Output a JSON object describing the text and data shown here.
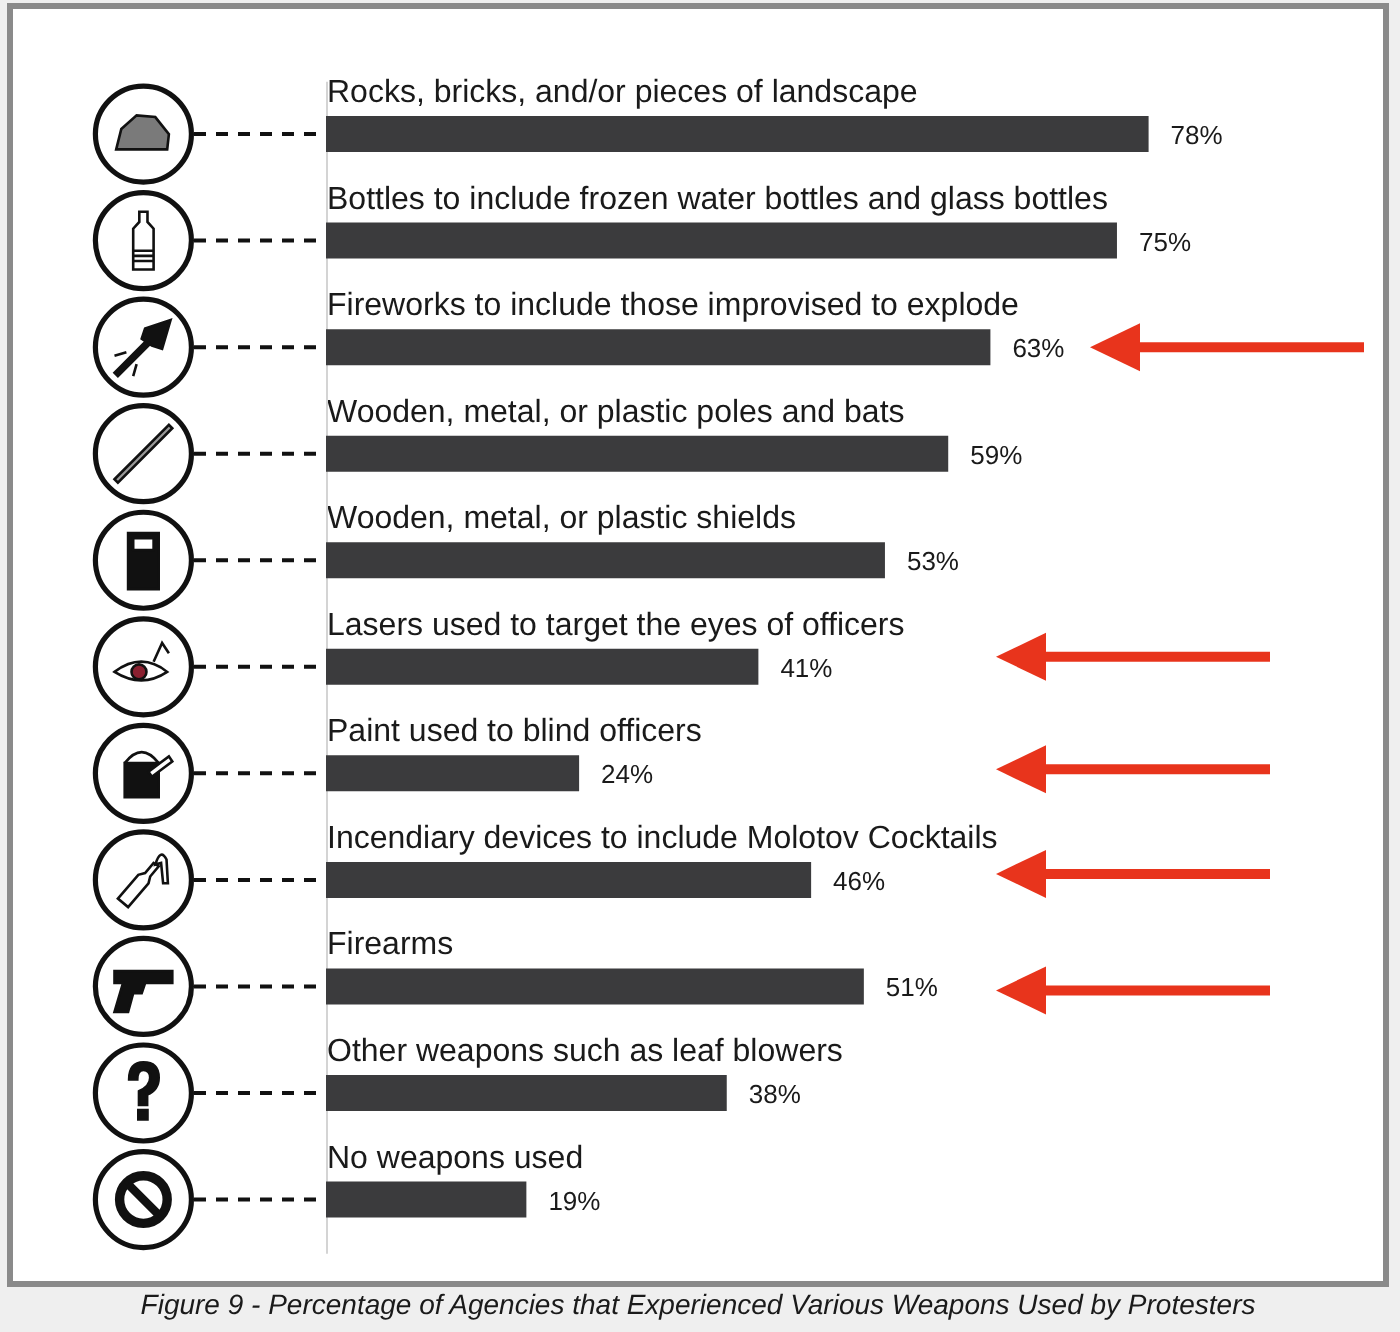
{
  "chart_data": {
    "type": "bar",
    "orientation": "horizontal",
    "categories": [
      "Rocks, bricks, and/or pieces of landscape",
      "Bottles to include frozen water bottles and glass bottles",
      "Fireworks to include those improvised to explode",
      "Wooden, metal, or plastic poles and bats",
      "Wooden, metal, or plastic shields",
      "Lasers used to target the eyes of officers",
      "Paint used to blind officers",
      "Incendiary devices to include Molotov Cocktails",
      "Firearms",
      "Other weapons such as leaf blowers",
      "No weapons used"
    ],
    "values": [
      78,
      75,
      63,
      59,
      53,
      41,
      24,
      46,
      51,
      38,
      19
    ],
    "color": "#3b3b3d",
    "value_labels": [
      "78%",
      "75%",
      "63%",
      "59%",
      "53%",
      "41%",
      "24%",
      "46%",
      "51%",
      "38%",
      "19%"
    ],
    "annotations": [
      "Figure 9 - Percentage of Agencies that Experienced Various Weapons Used by Protesters"
    ]
  }
}
